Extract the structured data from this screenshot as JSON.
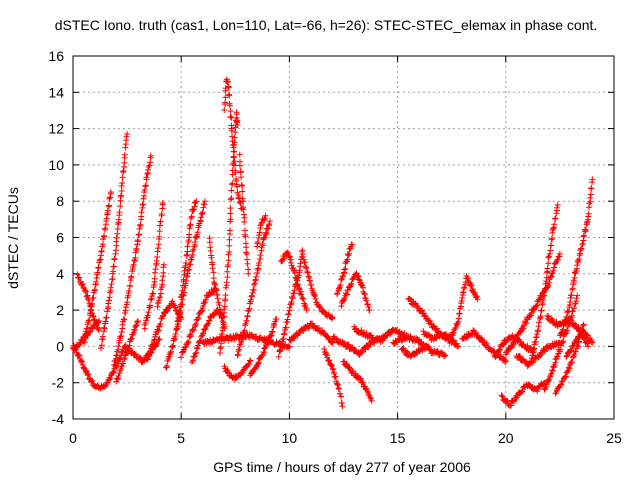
{
  "chart_data": {
    "type": "scatter",
    "title": "dSTEC Iono. truth (cas1, Lon=110, Lat=-66, h=26): STEC-STEC_elemax in phase cont.",
    "xlabel": "GPS time / hours of day 277 of year 2006",
    "ylabel": "dSTEC  / TECUs",
    "xlim": [
      0,
      25
    ],
    "ylim": [
      -4,
      16
    ],
    "x_ticks": [
      "0",
      "5",
      "10",
      "15",
      "20",
      "25"
    ],
    "y_ticks": [
      "-4",
      "-2",
      "0",
      "2",
      "4",
      "6",
      "8",
      "10",
      "12",
      "14",
      "16"
    ],
    "grid": true,
    "marker": "+",
    "series": [
      {
        "color": "#ff0000",
        "tracks": [
          [
            [
              0.0,
              0.0
            ],
            [
              0.3,
              -0.6
            ],
            [
              0.6,
              -1.4
            ],
            [
              0.9,
              -2.0
            ],
            [
              1.2,
              -2.3
            ],
            [
              1.5,
              -2.2
            ],
            [
              1.8,
              -1.6
            ],
            [
              2.1,
              -0.8
            ],
            [
              2.4,
              0.0
            ]
          ],
          [
            [
              0.2,
              3.9
            ],
            [
              0.45,
              3.4
            ],
            [
              0.7,
              2.6
            ],
            [
              0.95,
              1.6
            ],
            [
              1.2,
              0.9
            ]
          ],
          [
            [
              0.5,
              0.2
            ],
            [
              0.8,
              1.8
            ],
            [
              1.1,
              3.8
            ],
            [
              1.4,
              5.8
            ],
            [
              1.6,
              7.4
            ],
            [
              1.75,
              8.5
            ]
          ],
          [
            [
              0.0,
              -0.2
            ],
            [
              0.4,
              0.3
            ],
            [
              0.8,
              0.9
            ],
            [
              1.2,
              1.4
            ]
          ],
          [
            [
              1.3,
              0.0
            ],
            [
              1.6,
              2.0
            ],
            [
              1.9,
              4.5
            ],
            [
              2.15,
              7.5
            ],
            [
              2.35,
              10.0
            ],
            [
              2.5,
              11.7
            ]
          ],
          [
            [
              1.9,
              -1.0
            ],
            [
              2.2,
              0.5
            ],
            [
              2.5,
              2.5
            ],
            [
              2.8,
              4.5
            ],
            [
              3.05,
              6.2
            ],
            [
              3.3,
              8.5
            ],
            [
              3.45,
              9.6
            ],
            [
              3.6,
              10.5
            ]
          ],
          [
            [
              2.0,
              -2.0
            ],
            [
              2.2,
              -1.2
            ],
            [
              2.5,
              -0.3
            ],
            [
              2.8,
              0.8
            ],
            [
              3.0,
              1.4
            ]
          ],
          [
            [
              2.4,
              0.0
            ],
            [
              2.8,
              -0.4
            ],
            [
              3.2,
              -0.8
            ],
            [
              3.6,
              -0.3
            ],
            [
              4.0,
              0.4
            ]
          ],
          [
            [
              3.3,
              1.0
            ],
            [
              3.7,
              3.0
            ],
            [
              3.9,
              5.0
            ],
            [
              4.05,
              6.8
            ],
            [
              4.15,
              7.9
            ]
          ],
          [
            [
              3.4,
              -0.8
            ],
            [
              3.8,
              0.5
            ],
            [
              4.2,
              1.8
            ],
            [
              4.6,
              2.4
            ],
            [
              5.0,
              1.5
            ]
          ],
          [
            [
              3.9,
              2.2
            ],
            [
              4.1,
              3.2
            ],
            [
              4.2,
              4.5
            ]
          ],
          [
            [
              4.3,
              -1.2
            ],
            [
              4.6,
              0.0
            ],
            [
              4.9,
              1.5
            ],
            [
              5.2,
              3.5
            ],
            [
              5.6,
              5.5
            ],
            [
              5.9,
              7.0
            ],
            [
              6.1,
              8.0
            ]
          ],
          [
            [
              4.8,
              1.0
            ],
            [
              5.1,
              3.5
            ],
            [
              5.3,
              5.5
            ],
            [
              5.5,
              7.4
            ],
            [
              5.7,
              8.0
            ]
          ],
          [
            [
              5.0,
              -0.5
            ],
            [
              5.4,
              0.5
            ],
            [
              5.8,
              1.6
            ],
            [
              6.2,
              2.8
            ],
            [
              6.6,
              3.2
            ]
          ],
          [
            [
              5.5,
              -0.8
            ],
            [
              5.9,
              0.4
            ],
            [
              6.3,
              1.5
            ],
            [
              6.7,
              2.0
            ],
            [
              6.9,
              1.6
            ]
          ],
          [
            [
              6.3,
              5.9
            ],
            [
              6.5,
              3.8
            ],
            [
              6.8,
              2.0
            ],
            [
              7.0,
              1.0
            ]
          ],
          [
            [
              6.8,
              -0.4
            ],
            [
              7.0,
              2.0
            ],
            [
              7.2,
              5.0
            ],
            [
              7.3,
              8.0
            ],
            [
              7.45,
              11.0
            ],
            [
              7.55,
              12.8
            ],
            [
              7.6,
              12.2
            ]
          ],
          [
            [
              7.0,
              13.0
            ],
            [
              7.1,
              14.8
            ],
            [
              7.2,
              14.2
            ],
            [
              7.35,
              11.8
            ],
            [
              7.5,
              9.5
            ],
            [
              7.65,
              8.2
            ],
            [
              7.8,
              7.6
            ]
          ],
          [
            [
              7.7,
              10.5
            ],
            [
              7.85,
              8.0
            ],
            [
              8.0,
              5.5
            ],
            [
              8.1,
              4.0
            ]
          ],
          [
            [
              7.6,
              -0.5
            ],
            [
              7.9,
              0.8
            ],
            [
              8.2,
              2.4
            ],
            [
              8.5,
              4.0
            ],
            [
              8.8,
              5.8
            ],
            [
              9.1,
              6.9
            ]
          ],
          [
            [
              8.5,
              5.5
            ],
            [
              8.7,
              6.8
            ],
            [
              8.9,
              7.2
            ]
          ],
          [
            [
              7.0,
              -1.2
            ],
            [
              7.4,
              -1.8
            ],
            [
              7.8,
              -1.5
            ],
            [
              8.2,
              -0.8
            ]
          ],
          [
            [
              8.2,
              -1.6
            ],
            [
              8.5,
              -1.0
            ],
            [
              8.8,
              -0.3
            ],
            [
              9.1,
              0.5
            ],
            [
              9.4,
              1.5
            ]
          ],
          [
            [
              6.0,
              0.2
            ],
            [
              7.0,
              0.4
            ],
            [
              8.0,
              0.6
            ],
            [
              9.0,
              0.3
            ],
            [
              10.0,
              0.0
            ]
          ],
          [
            [
              9.6,
              4.6
            ],
            [
              9.9,
              5.2
            ],
            [
              10.2,
              4.2
            ],
            [
              10.5,
              3.0
            ],
            [
              10.8,
              2.0
            ]
          ],
          [
            [
              9.5,
              -0.5
            ],
            [
              9.8,
              0.8
            ],
            [
              10.1,
              2.5
            ],
            [
              10.4,
              3.8
            ],
            [
              10.6,
              5.3
            ]
          ],
          [
            [
              10.6,
              5.0
            ],
            [
              10.9,
              3.8
            ],
            [
              11.2,
              2.6
            ],
            [
              11.6,
              1.8
            ],
            [
              12.0,
              1.6
            ]
          ],
          [
            [
              10.0,
              0.3
            ],
            [
              10.5,
              0.8
            ],
            [
              11.0,
              1.2
            ],
            [
              11.5,
              0.8
            ],
            [
              12.0,
              0.2
            ]
          ],
          [
            [
              11.6,
              -0.2
            ],
            [
              12.0,
              -1.2
            ],
            [
              12.3,
              -2.4
            ],
            [
              12.45,
              -3.3
            ]
          ],
          [
            [
              12.2,
              2.8
            ],
            [
              12.5,
              4.0
            ],
            [
              12.7,
              5.0
            ],
            [
              12.9,
              5.6
            ]
          ],
          [
            [
              12.4,
              2.2
            ],
            [
              12.8,
              3.4
            ],
            [
              13.1,
              4.0
            ],
            [
              13.4,
              3.2
            ],
            [
              13.7,
              2.0
            ]
          ],
          [
            [
              12.5,
              -0.8
            ],
            [
              12.9,
              -1.4
            ],
            [
              13.3,
              -1.9
            ],
            [
              13.6,
              -2.5
            ],
            [
              13.8,
              -3.0
            ]
          ],
          [
            [
              12.0,
              0.5
            ],
            [
              12.6,
              0.1
            ],
            [
              13.2,
              -0.4
            ],
            [
              13.8,
              0.2
            ],
            [
              14.4,
              0.5
            ]
          ],
          [
            [
              13.0,
              1.0
            ],
            [
              13.6,
              0.6
            ],
            [
              14.2,
              0.3
            ],
            [
              14.8,
              0.9
            ],
            [
              15.4,
              0.6
            ]
          ],
          [
            [
              15.2,
              -0.1
            ],
            [
              15.6,
              -0.6
            ],
            [
              16.0,
              -0.2
            ],
            [
              16.4,
              0.0
            ]
          ],
          [
            [
              15.5,
              2.6
            ],
            [
              15.9,
              2.2
            ],
            [
              16.3,
              1.6
            ],
            [
              16.7,
              1.0
            ],
            [
              17.1,
              0.6
            ],
            [
              17.5,
              0.2
            ]
          ],
          [
            [
              14.8,
              0.2
            ],
            [
              15.4,
              0.5
            ],
            [
              16.0,
              0.3
            ],
            [
              16.6,
              -0.3
            ],
            [
              17.2,
              -0.5
            ]
          ],
          [
            [
              16.2,
              0.8
            ],
            [
              16.6,
              0.4
            ],
            [
              17.0,
              0.7
            ],
            [
              17.4,
              0.5
            ],
            [
              17.8,
              0.0
            ]
          ],
          [
            [
              17.5,
              0.6
            ],
            [
              17.8,
              1.4
            ],
            [
              18.0,
              2.8
            ],
            [
              18.2,
              3.8
            ],
            [
              18.5,
              3.0
            ],
            [
              18.7,
              2.6
            ]
          ],
          [
            [
              18.0,
              0.4
            ],
            [
              18.5,
              0.8
            ],
            [
              19.0,
              0.2
            ],
            [
              19.5,
              -0.4
            ],
            [
              20.0,
              -0.8
            ]
          ],
          [
            [
              19.5,
              -0.6
            ],
            [
              19.9,
              0.2
            ],
            [
              20.3,
              0.6
            ],
            [
              20.8,
              0.1
            ],
            [
              21.3,
              -0.3
            ]
          ],
          [
            [
              19.8,
              -2.8
            ],
            [
              20.2,
              -3.2
            ],
            [
              20.6,
              -2.6
            ],
            [
              21.0,
              -2.1
            ],
            [
              21.4,
              -2.4
            ],
            [
              21.8,
              -2.0
            ]
          ],
          [
            [
              20.0,
              -0.4
            ],
            [
              20.5,
              0.4
            ],
            [
              21.0,
              1.5
            ],
            [
              21.5,
              2.5
            ],
            [
              22.0,
              3.5
            ],
            [
              22.3,
              4.6
            ],
            [
              22.5,
              5.1
            ]
          ],
          [
            [
              20.5,
              -0.5
            ],
            [
              21.0,
              -1.0
            ],
            [
              21.5,
              -0.5
            ],
            [
              22.0,
              0.0
            ],
            [
              22.5,
              0.2
            ]
          ],
          [
            [
              21.2,
              -0.6
            ],
            [
              21.5,
              1.0
            ],
            [
              21.8,
              3.0
            ],
            [
              22.0,
              5.0
            ],
            [
              22.2,
              6.5
            ],
            [
              22.4,
              7.8
            ]
          ],
          [
            [
              21.8,
              -2.4
            ],
            [
              22.2,
              -1.2
            ],
            [
              22.6,
              0.2
            ],
            [
              23.0,
              1.5
            ],
            [
              23.3,
              2.8
            ]
          ],
          [
            [
              22.3,
              -2.6
            ],
            [
              22.7,
              -1.8
            ],
            [
              23.0,
              -1.0
            ],
            [
              23.3,
              0.0
            ],
            [
              23.6,
              1.2
            ]
          ],
          [
            [
              22.5,
              0.5
            ],
            [
              22.9,
              2.0
            ],
            [
              23.2,
              4.0
            ],
            [
              23.5,
              5.5
            ],
            [
              23.8,
              7.0
            ],
            [
              24.0,
              9.2
            ]
          ],
          [
            [
              22.8,
              -0.6
            ],
            [
              23.2,
              0.2
            ],
            [
              23.6,
              0.8
            ],
            [
              24.0,
              0.2
            ]
          ],
          [
            [
              21.9,
              1.6
            ],
            [
              22.4,
              1.2
            ],
            [
              22.9,
              1.5
            ],
            [
              23.4,
              0.9
            ],
            [
              23.8,
              0.0
            ]
          ]
        ]
      }
    ]
  }
}
